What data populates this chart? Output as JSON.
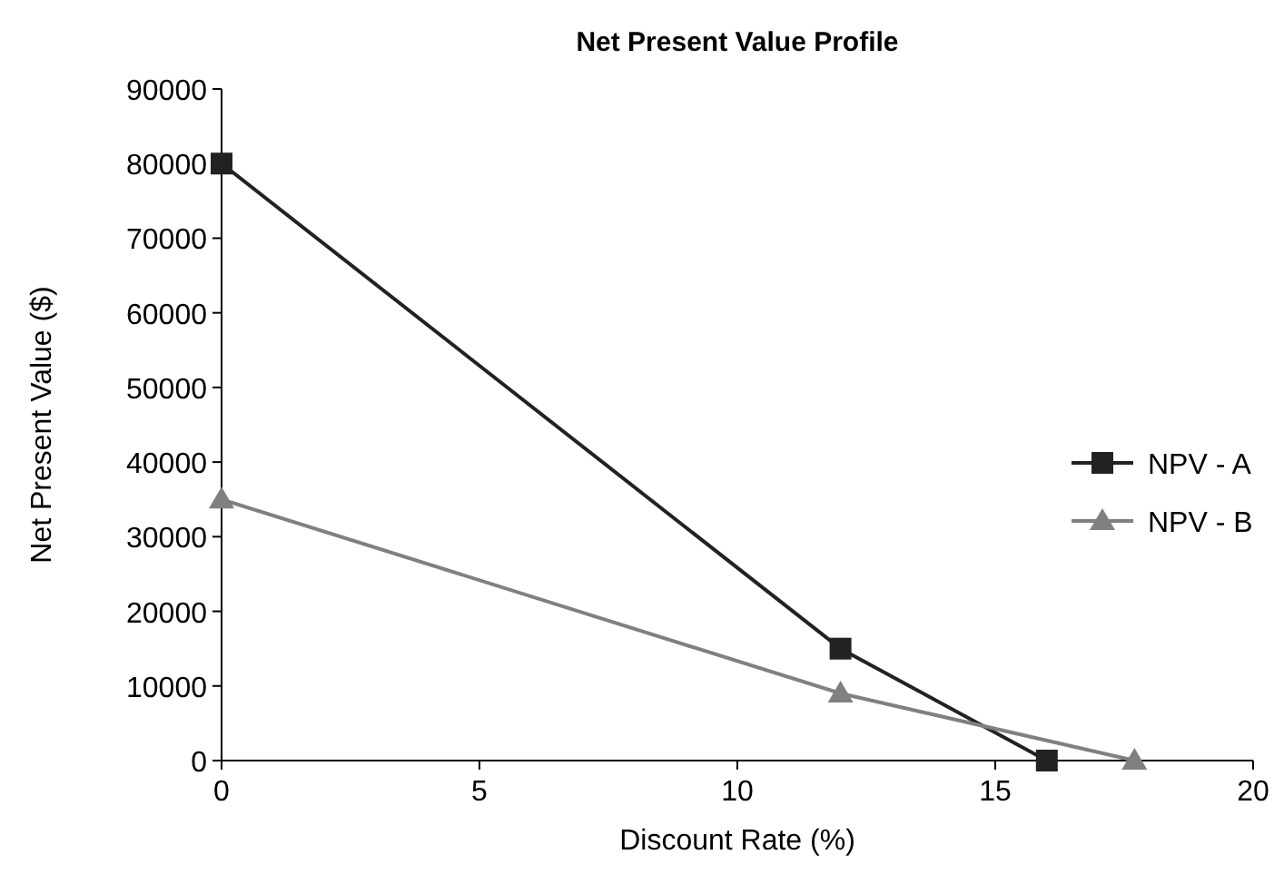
{
  "chart_data": {
    "type": "line",
    "title": "Net Present Value Profile",
    "xlabel": "Discount Rate (%)",
    "ylabel": "Net Present Value ($)",
    "xlim": [
      0,
      20
    ],
    "xticks": [
      0,
      5,
      10,
      15,
      20
    ],
    "ylim": [
      0,
      90000
    ],
    "yticks": [
      0,
      10000,
      20000,
      30000,
      40000,
      50000,
      60000,
      70000,
      80000,
      90000
    ],
    "legend": "right",
    "grid": false,
    "series": [
      {
        "name": "NPV - A",
        "color": "#222222",
        "marker": "square",
        "x": [
          0,
          12,
          16
        ],
        "values": [
          80000,
          15000,
          0
        ]
      },
      {
        "name": "NPV - B",
        "color": "#808080",
        "marker": "triangle",
        "x": [
          0,
          12,
          17.7
        ],
        "values": [
          35000,
          9000,
          0
        ]
      }
    ]
  }
}
